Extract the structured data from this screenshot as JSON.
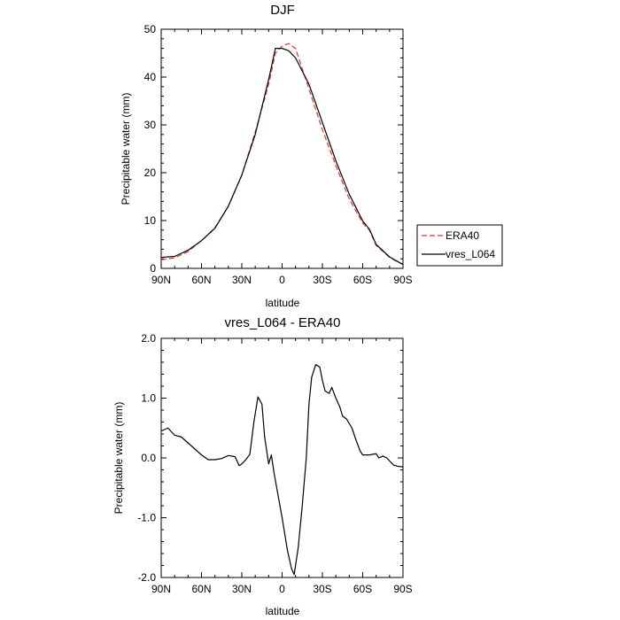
{
  "chart_data": [
    {
      "type": "line",
      "title": "DJF",
      "xlabel": "latitude",
      "ylabel": "Precipitable water (mm)",
      "xlim": [
        -90,
        90
      ],
      "ylim": [
        0,
        50
      ],
      "x_ticks": [
        -90,
        -60,
        -30,
        0,
        30,
        60,
        90
      ],
      "x_tick_labels": [
        "90N",
        "60N",
        "30N",
        "0",
        "30S",
        "60S",
        "90S"
      ],
      "y_ticks": [
        0,
        10,
        20,
        30,
        40,
        50
      ],
      "y_tick_labels": [
        "0",
        "10",
        "20",
        "30",
        "40",
        "50"
      ],
      "legend_position": "right-outside",
      "series": [
        {
          "name": "ERA40",
          "color": "#e8332b",
          "dash": "dashed",
          "x": [
            -90,
            -80,
            -70,
            -60,
            -50,
            -40,
            -30,
            -20,
            -10,
            -5,
            0,
            5,
            10,
            20,
            30,
            40,
            50,
            60,
            65,
            70,
            80,
            85,
            90
          ],
          "y": [
            1.8,
            2.2,
            3.5,
            5.8,
            8.5,
            13.0,
            19.5,
            28.5,
            38.5,
            45.0,
            46.5,
            47.0,
            46.0,
            37.5,
            29.0,
            21.5,
            14.5,
            9.5,
            8.0,
            4.8,
            2.3,
            1.5,
            0.9
          ]
        },
        {
          "name": "vres_L064",
          "color": "#000000",
          "dash": "solid",
          "x": [
            -90,
            -80,
            -70,
            -60,
            -50,
            -40,
            -30,
            -20,
            -10,
            -5,
            0,
            5,
            10,
            20,
            30,
            40,
            50,
            60,
            65,
            70,
            80,
            85,
            90
          ],
          "y": [
            2.3,
            2.5,
            3.8,
            5.8,
            8.4,
            13.0,
            19.5,
            28.0,
            39.5,
            46.0,
            46.0,
            45.5,
            44.0,
            38.5,
            30.5,
            22.5,
            15.5,
            9.9,
            8.2,
            5.0,
            2.4,
            1.6,
            0.8
          ]
        }
      ]
    },
    {
      "type": "line",
      "title": "vres_L064 - ERA40",
      "xlabel": "latitude",
      "ylabel": "Precipitable water (mm)",
      "xlim": [
        -90,
        90
      ],
      "ylim": [
        -2.0,
        2.0
      ],
      "x_ticks": [
        -90,
        -60,
        -30,
        0,
        30,
        60,
        90
      ],
      "x_tick_labels": [
        "90N",
        "60N",
        "30N",
        "0",
        "30S",
        "60S",
        "90S"
      ],
      "y_ticks": [
        -2.0,
        -1.0,
        0.0,
        1.0,
        2.0
      ],
      "y_tick_labels": [
        "-2.0",
        "-1.0",
        "0.0",
        "1.0",
        "2.0"
      ],
      "series": [
        {
          "name": "vres_L064 - ERA40",
          "color": "#000000",
          "dash": "solid",
          "x": [
            -90,
            -85,
            -80,
            -75,
            -65,
            -60,
            -55,
            -50,
            -45,
            -40,
            -35,
            -32,
            -30,
            -27,
            -24,
            -21,
            -18,
            -15,
            -13,
            -10,
            -8,
            -6,
            -2,
            0,
            4,
            7,
            9,
            12,
            15,
            18,
            20,
            22,
            25,
            28,
            30,
            32,
            35,
            37,
            40,
            43,
            45,
            48,
            52,
            55,
            58,
            60,
            65,
            70,
            72,
            75,
            78,
            80,
            83,
            86,
            90
          ],
          "y": [
            0.45,
            0.5,
            0.38,
            0.35,
            0.15,
            0.05,
            -0.03,
            -0.03,
            -0.01,
            0.04,
            0.02,
            -0.13,
            -0.1,
            -0.03,
            0.06,
            0.6,
            1.02,
            0.9,
            0.35,
            -0.1,
            0.05,
            -0.25,
            -0.75,
            -1.0,
            -1.55,
            -1.85,
            -1.95,
            -1.5,
            -0.8,
            0.0,
            0.9,
            1.35,
            1.56,
            1.52,
            1.3,
            1.12,
            1.08,
            1.18,
            1.0,
            0.85,
            0.7,
            0.65,
            0.5,
            0.3,
            0.12,
            0.05,
            0.05,
            0.07,
            0.0,
            0.03,
            0.0,
            -0.05,
            -0.12,
            -0.14,
            -0.15
          ]
        }
      ]
    }
  ]
}
